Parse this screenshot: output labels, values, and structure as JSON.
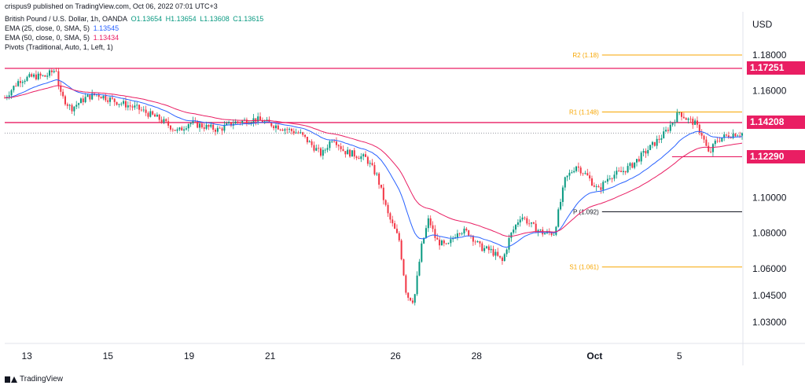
{
  "publisher": "crispus9 published on TradingView.com, Oct 06, 2022 07:01 UTC+3",
  "symbol": {
    "name": "British Pound / U.S. Dollar, 1h, OANDA",
    "open": "O1.13654",
    "high": "H1.13654",
    "low": "L1.13608",
    "close": "C1.13615"
  },
  "indicators": [
    {
      "label": "EMA (25, close, 0, SMA, 5)",
      "value": "1.13545",
      "color": "#2962ff"
    },
    {
      "label": "EMA (50, close, 0, SMA, 5)",
      "value": "1.13434",
      "color": "#e91e63"
    },
    {
      "label": "Pivots (Traditional, Auto, 1, Left, 1)",
      "value": "",
      "color": "#131722"
    }
  ],
  "currency": "USD",
  "footer": "TradingView",
  "colors": {
    "up": "#089981",
    "down": "#f23645",
    "ema25": "#2962ff",
    "ema50": "#e91e63",
    "hline": "#e91e63",
    "pivot_r": "#f7a600",
    "pivot_p": "#131722"
  },
  "price_tags": [
    {
      "value": 1.17251,
      "label": "1.17251"
    },
    {
      "value": 1.14208,
      "label": "1.14208"
    },
    {
      "value": 1.1229,
      "label": "1.12290"
    }
  ],
  "chart_data": {
    "type": "candlestick",
    "title": "British Pound / U.S. Dollar, 1h, OANDA",
    "xlabel": "",
    "ylabel": "USD",
    "y_ticks": [
      1.18,
      1.16,
      1.1,
      1.08,
      1.06,
      1.045,
      1.03
    ],
    "y_tick_labels": [
      "1.18000",
      "1.16000",
      "1.10000",
      "1.08000",
      "1.06000",
      "1.04500",
      "1.03000"
    ],
    "x_ticks": [
      {
        "label": "13",
        "pos": 0.03
      },
      {
        "label": "15",
        "pos": 0.14
      },
      {
        "label": "19",
        "pos": 0.25
      },
      {
        "label": "21",
        "pos": 0.36
      },
      {
        "label": "26",
        "pos": 0.53
      },
      {
        "label": "28",
        "pos": 0.64
      },
      {
        "label": "Oct",
        "pos": 0.8
      },
      {
        "label": "5",
        "pos": 0.915
      }
    ],
    "horizontal_lines": [
      1.17251,
      1.14208
    ],
    "support_line": 1.1229,
    "last_price": 1.13615,
    "pivots": [
      {
        "label": "R2 (1.18)",
        "value": 1.18
      },
      {
        "label": "R1 (1.148)",
        "value": 1.148
      },
      {
        "label": "P (1.092)",
        "value": 1.092
      },
      {
        "label": "S1 (1.061)",
        "value": 1.061
      }
    ],
    "path": [
      [
        0.0,
        1.156
      ],
      [
        0.02,
        1.166
      ],
      [
        0.04,
        1.168
      ],
      [
        0.055,
        1.168
      ],
      [
        0.07,
        1.172
      ],
      [
        0.075,
        1.158
      ],
      [
        0.09,
        1.15
      ],
      [
        0.11,
        1.156
      ],
      [
        0.125,
        1.158
      ],
      [
        0.15,
        1.154
      ],
      [
        0.18,
        1.15
      ],
      [
        0.21,
        1.144
      ],
      [
        0.235,
        1.137
      ],
      [
        0.25,
        1.142
      ],
      [
        0.27,
        1.14
      ],
      [
        0.29,
        1.138
      ],
      [
        0.31,
        1.142
      ],
      [
        0.34,
        1.144
      ],
      [
        0.37,
        1.14
      ],
      [
        0.4,
        1.136
      ],
      [
        0.42,
        1.128
      ],
      [
        0.43,
        1.124
      ],
      [
        0.445,
        1.134
      ],
      [
        0.46,
        1.126
      ],
      [
        0.49,
        1.122
      ],
      [
        0.505,
        1.112
      ],
      [
        0.52,
        1.09
      ],
      [
        0.535,
        1.076
      ],
      [
        0.545,
        1.045
      ],
      [
        0.555,
        1.042
      ],
      [
        0.565,
        1.072
      ],
      [
        0.575,
        1.088
      ],
      [
        0.585,
        1.076
      ],
      [
        0.6,
        1.072
      ],
      [
        0.615,
        1.082
      ],
      [
        0.63,
        1.08
      ],
      [
        0.645,
        1.072
      ],
      [
        0.66,
        1.07
      ],
      [
        0.675,
        1.064
      ],
      [
        0.685,
        1.078
      ],
      [
        0.7,
        1.09
      ],
      [
        0.715,
        1.084
      ],
      [
        0.73,
        1.08
      ],
      [
        0.745,
        1.08
      ],
      [
        0.76,
        1.11
      ],
      [
        0.775,
        1.118
      ],
      [
        0.79,
        1.112
      ],
      [
        0.805,
        1.104
      ],
      [
        0.82,
        1.112
      ],
      [
        0.835,
        1.114
      ],
      [
        0.85,
        1.118
      ],
      [
        0.865,
        1.124
      ],
      [
        0.88,
        1.13
      ],
      [
        0.895,
        1.136
      ],
      [
        0.905,
        1.142
      ],
      [
        0.915,
        1.148
      ],
      [
        0.925,
        1.144
      ],
      [
        0.935,
        1.142
      ],
      [
        0.945,
        1.136
      ],
      [
        0.955,
        1.124
      ],
      [
        0.965,
        1.132
      ],
      [
        0.975,
        1.134
      ],
      [
        0.99,
        1.136
      ],
      [
        1.0,
        1.136
      ]
    ]
  }
}
